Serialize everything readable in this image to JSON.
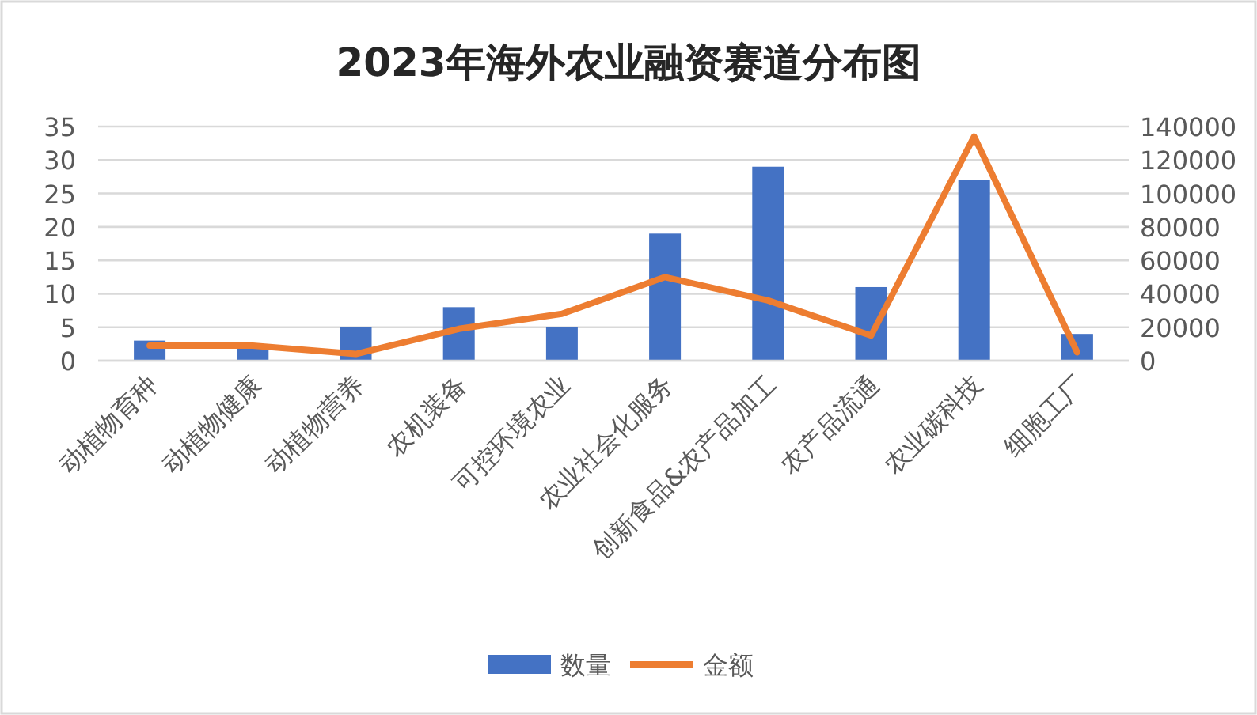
{
  "chart_data": {
    "type": "bar",
    "title": "2023年海外农业融资赛道分布图",
    "categories": [
      "动植物育种",
      "动植物健康",
      "动植物营养",
      "农机装备",
      "可控环境农业",
      "农业社会化服务",
      "创新食品&农产品加工",
      "农产品流通",
      "农业碳科技",
      "细胞工厂"
    ],
    "series": [
      {
        "name": "数量",
        "color": "#4472c4",
        "values": [
          3,
          2,
          5,
          8,
          5,
          19,
          29,
          11,
          27,
          4
        ]
      },
      {
        "name": "金额",
        "type": "line",
        "axis": "y2",
        "color": "#ed7d31",
        "values": [
          9000,
          9000,
          4000,
          19000,
          28000,
          50000,
          36000,
          15000,
          134000,
          5000
        ]
      }
    ],
    "ylim": [
      0,
      35
    ],
    "yticks": [
      0,
      5,
      10,
      15,
      20,
      25,
      30,
      35
    ],
    "y2lim": [
      0,
      140000
    ],
    "y2ticks": [
      0,
      20000,
      40000,
      60000,
      80000,
      100000,
      120000,
      140000
    ],
    "grid": "y",
    "legend": "bottom"
  }
}
